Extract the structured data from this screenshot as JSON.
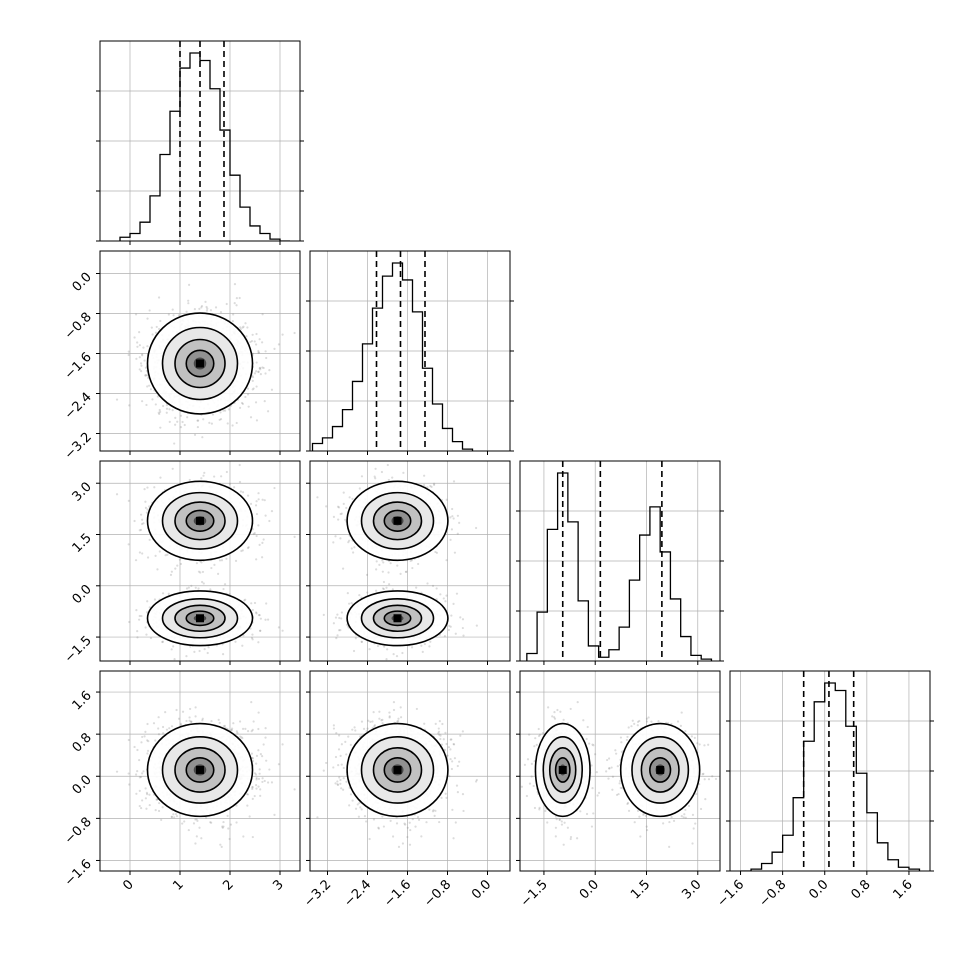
{
  "chart_data": {
    "type": "corner",
    "grid": true,
    "parameters": [
      {
        "range": [
          -0.6,
          3.4
        ],
        "ticks": [
          0,
          1,
          2,
          3
        ],
        "tick_labels": [
          "0",
          "1",
          "2",
          "3"
        ]
      },
      {
        "range": [
          -3.55,
          0.45
        ],
        "ticks": [
          -3.2,
          -2.4,
          -1.6,
          -0.8,
          0.0
        ],
        "tick_labels": [
          "−3.2",
          "−2.4",
          "−1.6",
          "−0.8",
          "0.0"
        ]
      },
      {
        "range": [
          -2.2,
          3.65
        ],
        "ticks": [
          -1.5,
          0.0,
          1.5,
          3.0
        ],
        "tick_labels": [
          "−1.5",
          "0.0",
          "1.5",
          "3.0"
        ]
      },
      {
        "range": [
          -1.8,
          2.0
        ],
        "ticks": [
          -1.6,
          -0.8,
          0.0,
          0.8,
          1.6
        ],
        "tick_labels": [
          "−1.6",
          "−0.8",
          "0.0",
          "0.8",
          "1.6"
        ]
      }
    ],
    "histograms": [
      {
        "bin_edges": [
          -0.2,
          0.0,
          0.2,
          0.4,
          0.6,
          0.8,
          1.0,
          1.2,
          1.4,
          1.6,
          1.8,
          2.0,
          2.2,
          2.4,
          2.6,
          2.8,
          3.0,
          3.2
        ],
        "counts": [
          2,
          4,
          10,
          24,
          46,
          69,
          92,
          100,
          96,
          81,
          59,
          35,
          18,
          8,
          4,
          1,
          0
        ],
        "quantiles": [
          1.0,
          1.4,
          1.88
        ]
      },
      {
        "bin_edges": [
          -3.5,
          -3.3,
          -3.1,
          -2.9,
          -2.7,
          -2.5,
          -2.3,
          -2.1,
          -1.9,
          -1.7,
          -1.5,
          -1.3,
          -1.1,
          -0.9,
          -0.7,
          -0.5,
          -0.3
        ],
        "counts": [
          4,
          7,
          13,
          22,
          37,
          57,
          76,
          93,
          100,
          91,
          74,
          44,
          25,
          12,
          5,
          1
        ],
        "quantiles": [
          -2.22,
          -1.74,
          -1.25
        ]
      },
      {
        "bin_edges": [
          -2.0,
          -1.7,
          -1.4,
          -1.1,
          -0.8,
          -0.5,
          -0.2,
          0.1,
          0.4,
          0.7,
          1.0,
          1.3,
          1.6,
          1.9,
          2.2,
          2.5,
          2.8,
          3.1,
          3.4
        ],
        "counts": [
          4,
          26,
          70,
          100,
          74,
          32,
          8,
          2,
          6,
          18,
          43,
          67,
          82,
          58,
          33,
          13,
          3,
          1
        ],
        "quantiles": [
          -0.95,
          0.15,
          1.95
        ]
      },
      {
        "bin_edges": [
          -1.6,
          -1.4,
          -1.2,
          -1.0,
          -0.8,
          -0.6,
          -0.4,
          -0.2,
          0.0,
          0.2,
          0.4,
          0.6,
          0.8,
          1.0,
          1.2,
          1.4,
          1.6,
          1.8
        ],
        "counts": [
          0,
          1,
          4,
          10,
          19,
          39,
          69,
          90,
          100,
          96,
          77,
          52,
          31,
          15,
          6,
          2,
          1
        ],
        "quantiles": [
          -0.4,
          0.08,
          0.55
        ]
      }
    ],
    "modes": [
      {
        "weight": 0.5,
        "mean": [
          1.4,
          -1.8,
          -0.95,
          0.12
        ],
        "sd": [
          0.5,
          0.48,
          0.38,
          0.42
        ]
      },
      {
        "weight": 0.5,
        "mean": [
          1.4,
          -1.8,
          1.9,
          0.12
        ],
        "sd": [
          0.5,
          0.48,
          0.55,
          0.42
        ]
      }
    ]
  }
}
